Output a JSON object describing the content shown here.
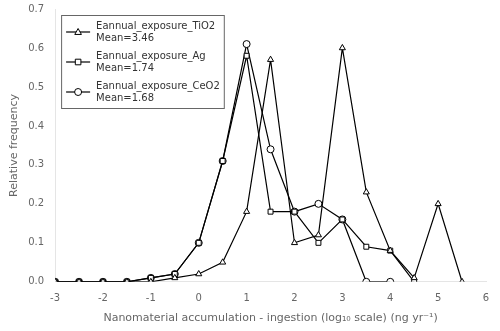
{
  "chart_data": {
    "type": "line",
    "xlabel": "Nanomaterial accumulation - ingestion (log₁₀ scale) (ng yr⁻¹)",
    "ylabel": "Relative frequency",
    "xlim": [
      -3,
      6
    ],
    "ylim": [
      0,
      0.7
    ],
    "xticks": [
      -3,
      -2,
      -1,
      0,
      1,
      2,
      3,
      4,
      5,
      6
    ],
    "yticks": [
      {
        "value": 0.0,
        "label": "0.0"
      },
      0.1,
      0.2,
      0.3,
      0.4,
      0.5,
      0.6,
      0.7
    ],
    "grid": false,
    "legend": "upper left",
    "series": [
      {
        "name": "Eannual_exposure_TiO2\nMean=3.46",
        "color": "black",
        "marker": "triangle",
        "x": [
          -3.0,
          -2.5,
          -2.0,
          -1.5,
          -1.0,
          -0.5,
          0.0,
          0.5,
          1.0,
          1.5,
          2.0,
          2.5,
          3.0,
          3.5,
          4.0,
          4.5,
          5.0,
          5.5
        ],
        "values": [
          0.0,
          0.0,
          0.0,
          0.0,
          0.0,
          0.01,
          0.02,
          0.05,
          0.18,
          0.57,
          0.1,
          0.12,
          0.6,
          0.23,
          0.08,
          0.01,
          0.2,
          0.0
        ]
      },
      {
        "name": "Eannual_exposure_Ag\nMean=1.74",
        "color": "black",
        "marker": "square",
        "x": [
          -3.0,
          -2.5,
          -2.0,
          -1.5,
          -1.0,
          -0.5,
          0.0,
          0.5,
          1.0,
          1.5,
          2.0,
          2.5,
          3.0,
          3.5,
          4.0,
          4.5
        ],
        "values": [
          0.0,
          0.0,
          0.0,
          0.0,
          0.01,
          0.02,
          0.1,
          0.31,
          0.58,
          0.18,
          0.18,
          0.1,
          0.16,
          0.09,
          0.08,
          0.0
        ]
      },
      {
        "name": "Eannual_exposure_CeO2\nMean=1.68",
        "color": "black",
        "marker": "circle",
        "x": [
          -3.0,
          -2.5,
          -2.0,
          -1.5,
          -1.0,
          -0.5,
          0.0,
          0.5,
          1.0,
          1.5,
          2.0,
          2.5,
          3.0,
          3.5,
          4.0
        ],
        "values": [
          0.0,
          0.0,
          0.0,
          0.0,
          0.01,
          0.02,
          0.1,
          0.31,
          0.61,
          0.34,
          0.18,
          0.2,
          0.16,
          0.0,
          0.0
        ]
      }
    ]
  }
}
